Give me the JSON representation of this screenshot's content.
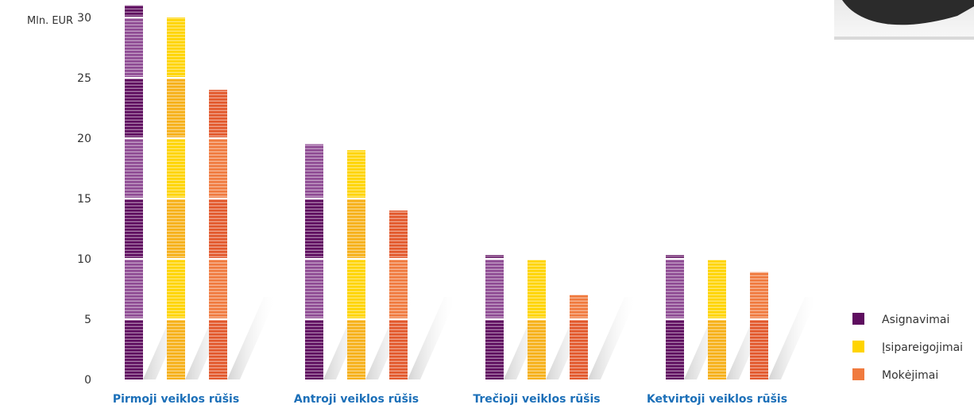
{
  "chart_data": {
    "type": "bar",
    "ylabel": "Mln. EUR",
    "ylim": [
      0,
      30
    ],
    "yticks": [
      0,
      5,
      10,
      15,
      20,
      25,
      30
    ],
    "categories": [
      "Pirmoji veiklos rūšis",
      "Antroji veiklos rūšis",
      "Trečioji veiklos rūšis",
      "Ketvirtoji veiklos rūšis"
    ],
    "series": [
      {
        "name": "Asignavimai",
        "color": "#5e0d5f",
        "values": [
          31,
          19.5,
          10.3,
          10.3
        ]
      },
      {
        "name": "Įsipareigojimai",
        "color": "#ffd400",
        "values": [
          30,
          19,
          9.9,
          9.9
        ]
      },
      {
        "name": "Mokėjimai",
        "color": "#f07a3e",
        "values": [
          24,
          14,
          7,
          8.9
        ]
      }
    ],
    "legend_position": "bottom-right",
    "grid": false
  }
}
